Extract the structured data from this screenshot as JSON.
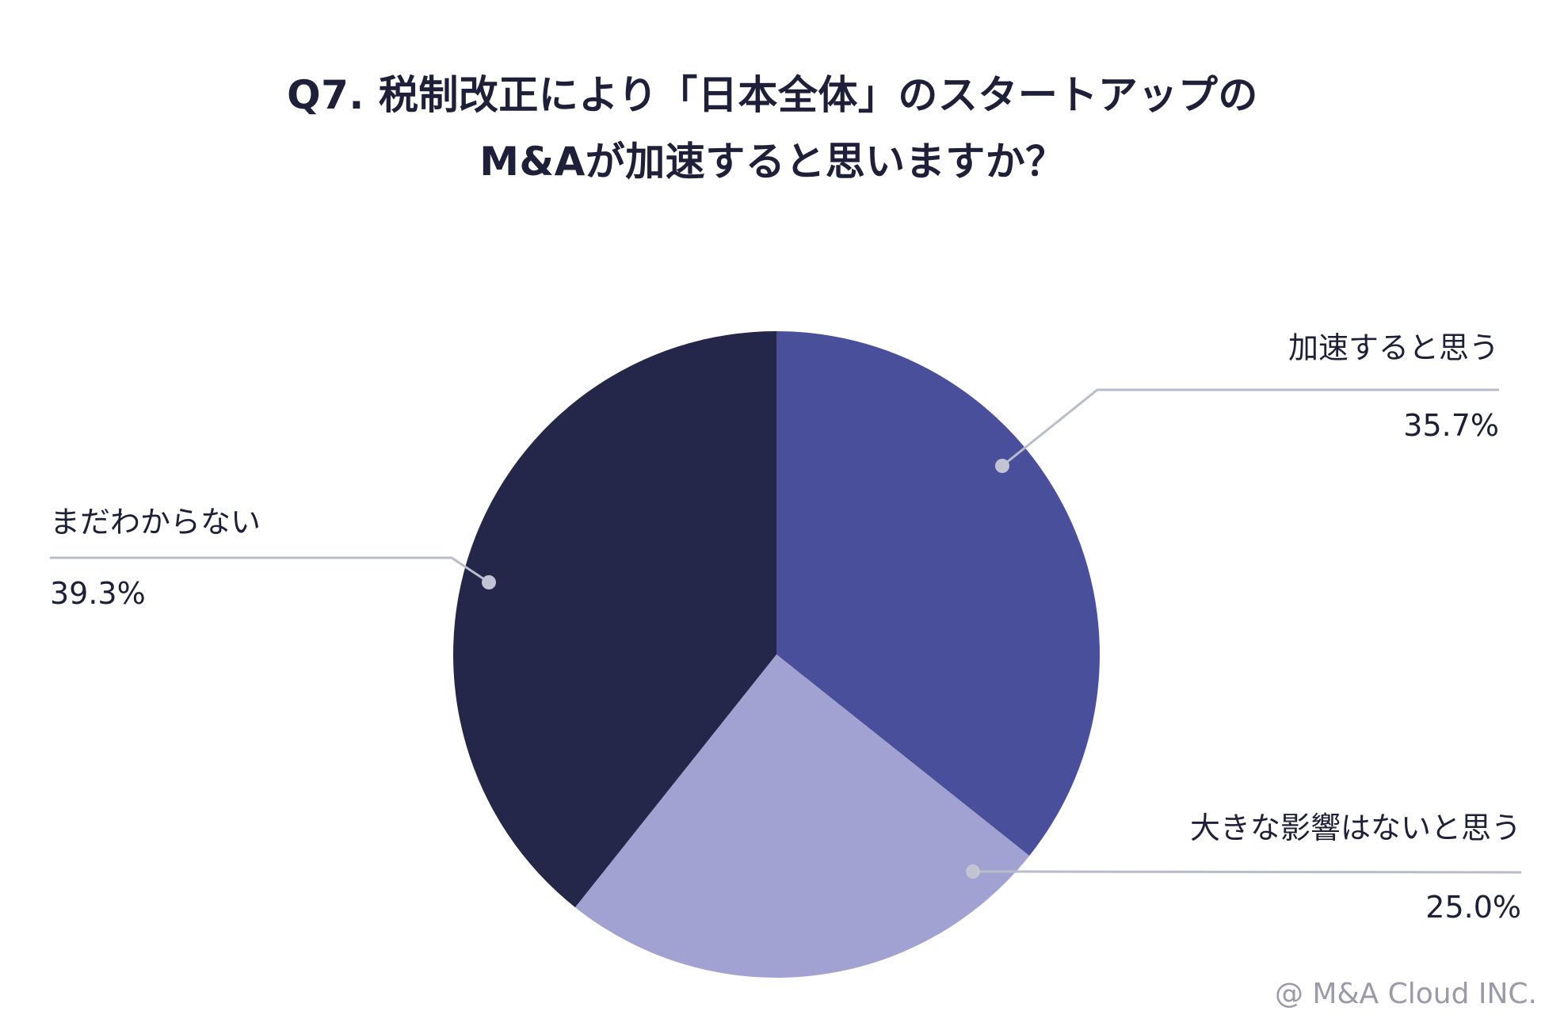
{
  "title_lines": [
    "Q7. 税制改正により「日本全体」のスタートアップの",
    "M&Aが加速すると思いますか？"
  ],
  "credit": "@ M&A Cloud INC.",
  "chart_data": {
    "type": "pie",
    "title": "Q7. 税制改正により「日本全体」のスタートアップのM&Aが加速すると思いますか？",
    "start_angle_deg": 0,
    "direction": "clockwise",
    "slices": [
      {
        "label": "加速すると思う",
        "value": 35.7,
        "value_label": "35.7%",
        "color": "#4a4f9c"
      },
      {
        "label": "大きな影響はないと思う",
        "value": 25.0,
        "value_label": "25.0%",
        "color": "#a1a2d2"
      },
      {
        "label": "まだわからない",
        "value": 39.3,
        "value_label": "39.3%",
        "color": "#25274a"
      }
    ],
    "leader_line_color": "#b9bccb"
  }
}
